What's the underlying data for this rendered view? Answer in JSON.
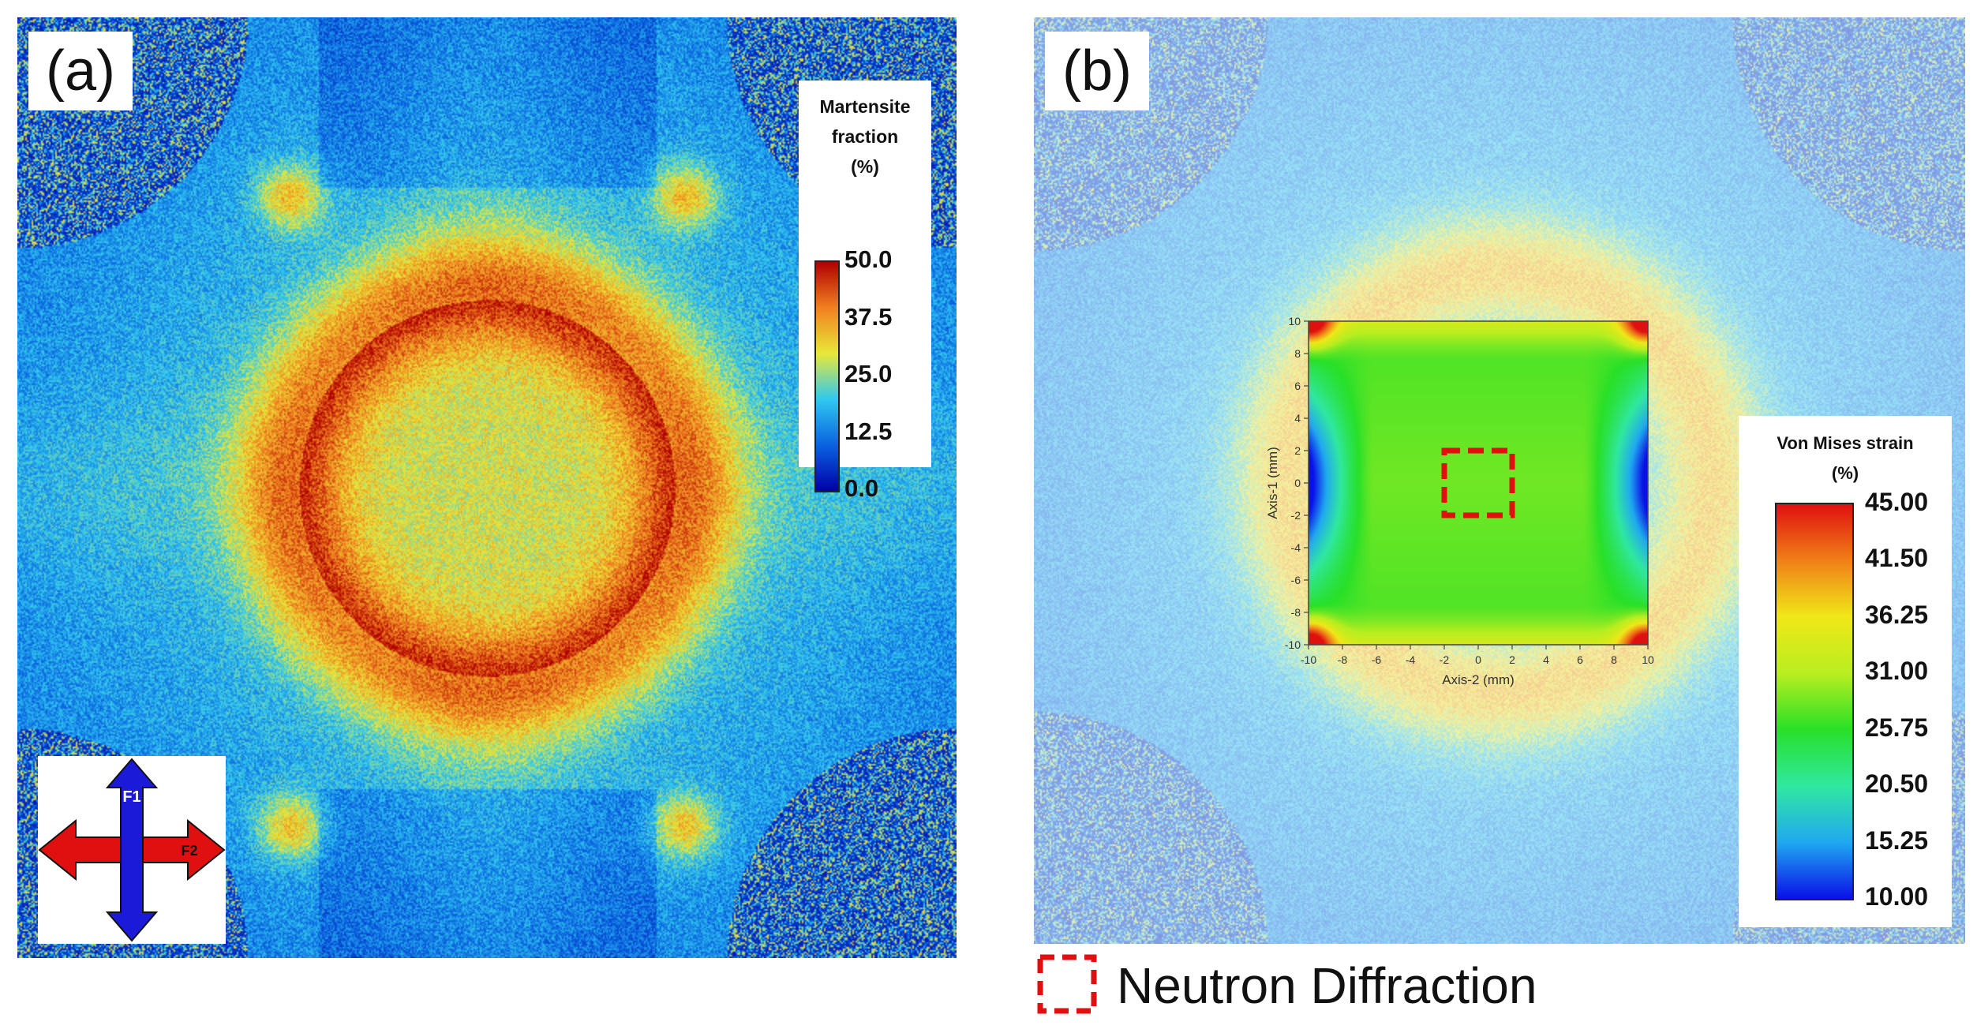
{
  "panel_a": {
    "label": "(a)",
    "legend": {
      "title_lines": [
        "Martensite",
        "fraction",
        "(%)"
      ],
      "ticks": [
        "50.0",
        "37.5",
        "25.0",
        "12.5",
        "0.0"
      ],
      "range": [
        0,
        50
      ],
      "colors": [
        "#0000a8",
        "#0a62e0",
        "#30c8f0",
        "#e8e838",
        "#f08020",
        "#b00000"
      ]
    },
    "force_arrows": {
      "vertical_label": "F1",
      "horizontal_label": "F2",
      "vertical_color": "#1a1ad8",
      "horizontal_color": "#e01010"
    }
  },
  "panel_b": {
    "label": "(b)",
    "legend": {
      "title_lines": [
        "Von Mises strain",
        "(%)"
      ],
      "ticks": [
        "45.00",
        "41.50",
        "36.25",
        "31.00",
        "25.75",
        "20.50",
        "15.25",
        "10.00"
      ],
      "range": [
        10,
        45
      ],
      "colors": [
        "#0a10e8",
        "#20a8f0",
        "#30e8a0",
        "#28e028",
        "#b8ee20",
        "#f0e818",
        "#f08018",
        "#e01010"
      ]
    },
    "inset": {
      "xlabel": "Axis-2 (mm)",
      "ylabel": "Axis-1 (mm)",
      "x_ticks": [
        "-10",
        "-8",
        "-6",
        "-4",
        "-2",
        "0",
        "2",
        "4",
        "6",
        "8",
        "10"
      ],
      "y_ticks": [
        "10",
        "8",
        "6",
        "4",
        "2",
        "0",
        "-2",
        "-4",
        "-6",
        "-8",
        "-10"
      ],
      "xlim": [
        -10,
        10
      ],
      "ylim": [
        -10,
        10
      ],
      "marker": {
        "x": [
          -2,
          2
        ],
        "y": [
          -2,
          2
        ],
        "color": "#e01010"
      }
    }
  },
  "footer": {
    "label": "Neutron Diffraction",
    "marker_color": "#e01010"
  },
  "chart_data": [
    {
      "type": "heatmap",
      "title": "(a)",
      "colorbar_label": "Martensite fraction (%)",
      "colorbar_range": [
        0,
        50
      ],
      "colorbar_ticks": [
        50.0,
        37.5,
        25.0,
        12.5,
        0.0
      ],
      "annotations": [
        "F1",
        "F2"
      ]
    },
    {
      "type": "heatmap",
      "title": "(b)",
      "colorbar_label": "Von Mises strain (%)",
      "colorbar_range": [
        10,
        45
      ],
      "colorbar_ticks": [
        45.0,
        41.5,
        36.25,
        31.0,
        25.75,
        20.5,
        15.25,
        10.0
      ],
      "inset": {
        "xlabel": "Axis-2 (mm)",
        "ylabel": "Axis-1 (mm)",
        "xlim": [
          -10,
          10
        ],
        "ylim": [
          -10,
          10
        ],
        "x_ticks": [
          -10,
          -8,
          -6,
          -4,
          -2,
          0,
          2,
          4,
          6,
          8,
          10
        ],
        "y_ticks": [
          -10,
          -8,
          -6,
          -4,
          -2,
          0,
          2,
          4,
          6,
          8,
          10
        ]
      },
      "legend": [
        "Neutron Diffraction"
      ]
    }
  ]
}
